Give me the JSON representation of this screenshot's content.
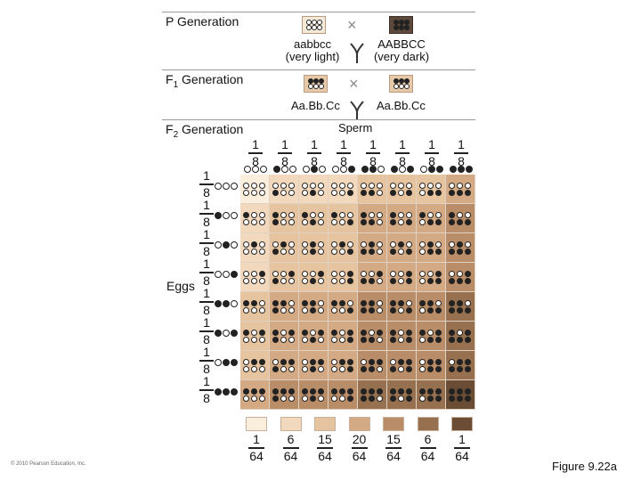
{
  "headings": {
    "p_generation": "P Generation",
    "f1_generation_prefix": "F",
    "f1_generation_sub": "1",
    "f1_generation_suffix": " Generation",
    "f2_generation_prefix": "F",
    "f2_generation_sub": "2",
    "f2_generation_suffix": " Generation"
  },
  "p_cross": {
    "symbol": "×",
    "left_genotype": "aabbcc",
    "left_desc": "(very light)",
    "right_genotype": "AABBCC",
    "right_desc": "(very dark)"
  },
  "f1_cross": {
    "symbol": "×",
    "left_genotype": "Aa.Bb.Cc",
    "right_genotype": "Aa.Bb.Cc"
  },
  "punnett": {
    "sperm_label": "Sperm",
    "eggs_label": "Eggs",
    "frac_num": "1",
    "frac_den": "8",
    "gametes": [
      "WWW",
      "DWW",
      "WDW",
      "WWD",
      "DDW",
      "DWD",
      "WDD",
      "DDD"
    ]
  },
  "phenotype_distribution": {
    "denominator": "64",
    "numerators": [
      "1",
      "6",
      "15",
      "20",
      "15",
      "6",
      "1"
    ],
    "colors": [
      "#fbeedd",
      "#f2d9bd",
      "#e6c4a0",
      "#d4aa85",
      "#b98d68",
      "#96704f",
      "#6b4d36"
    ]
  },
  "footer": {
    "copyright": "© 2010 Pearson Education, Inc.",
    "figure": "Figure 9.22a"
  }
}
